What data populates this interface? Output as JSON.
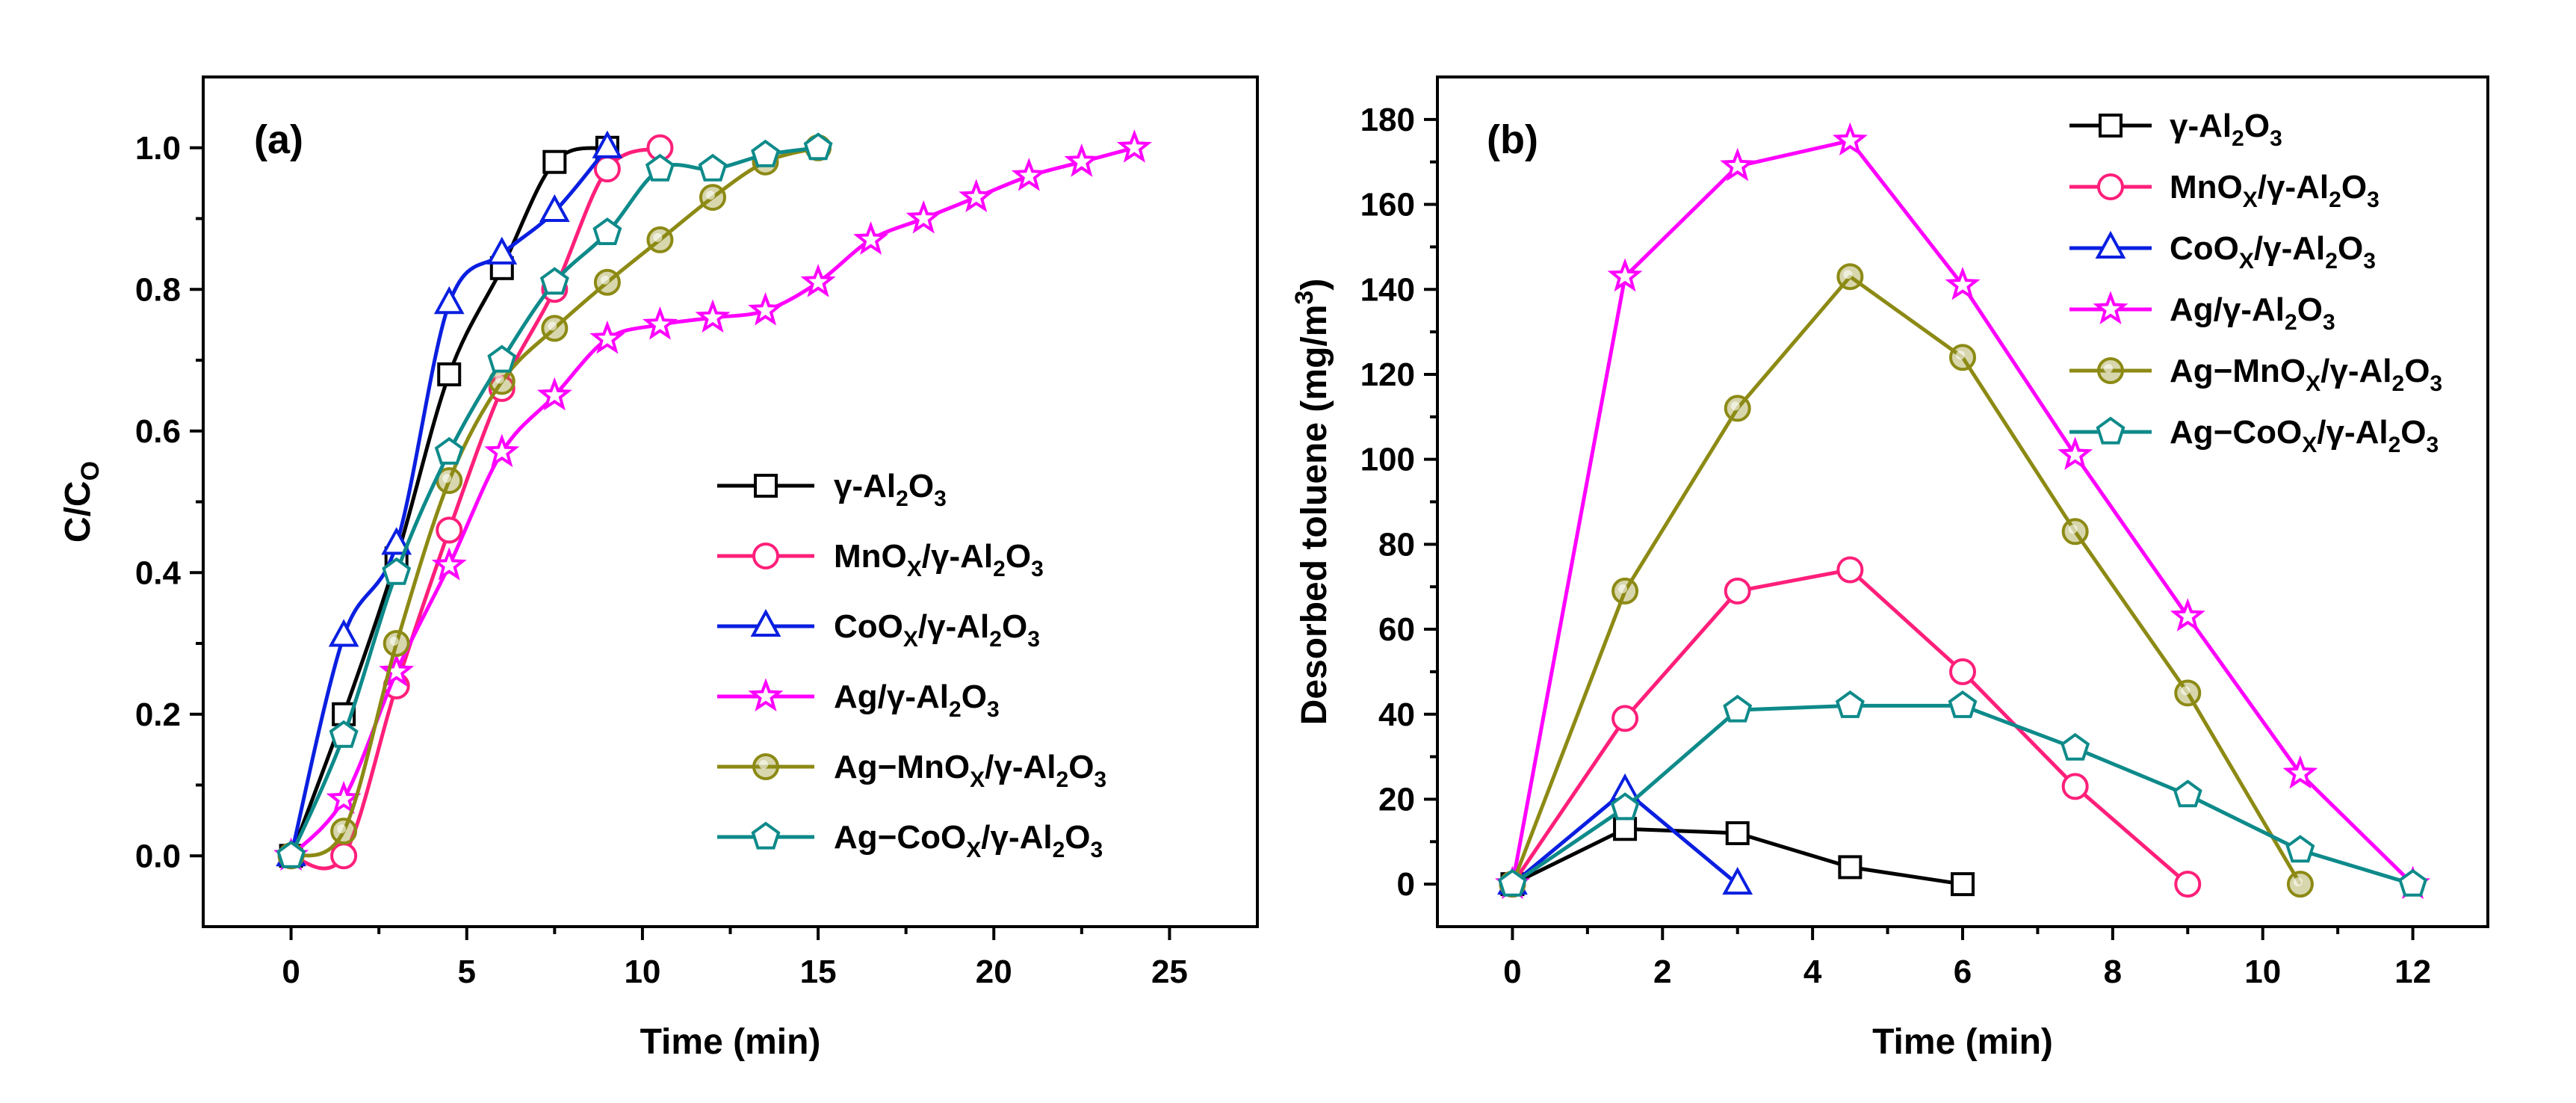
{
  "chart_data": [
    {
      "type": "line",
      "panel_label": "(a)",
      "xlabel": "Time (min)",
      "ylabel": "C/C",
      "ylabel_sub": "O",
      "xlim": [
        -2.5,
        27.5
      ],
      "ylim": [
        -0.1,
        1.1
      ],
      "xticks": [
        0,
        5,
        10,
        15,
        20,
        25
      ],
      "yticks": [
        0.0,
        0.2,
        0.4,
        0.6,
        0.8,
        1.0
      ],
      "ytick_labels": [
        "0.0",
        "0.2",
        "0.4",
        "0.6",
        "0.8",
        "1.0"
      ],
      "legend_position": "lower-right",
      "series": [
        {
          "name": "γ-Al2O3",
          "color": "#000000",
          "marker": "square",
          "x": [
            0,
            1.5,
            3,
            4.5,
            6,
            7.5,
            9
          ],
          "y": [
            0,
            0.2,
            0.42,
            0.68,
            0.83,
            0.98,
            1.0
          ]
        },
        {
          "name": "MnOx/γ-Al2O3",
          "color": "#ff1f7a",
          "marker": "circle",
          "x": [
            0,
            1.5,
            3,
            4.5,
            6,
            7.5,
            9,
            10.5
          ],
          "y": [
            0,
            0,
            0.24,
            0.46,
            0.66,
            0.8,
            0.97,
            1.0
          ]
        },
        {
          "name": "CoOx/γ-Al2O3",
          "color": "#0a1fe0",
          "marker": "triangle",
          "x": [
            0,
            1.5,
            3,
            4.5,
            6,
            7.5,
            9
          ],
          "y": [
            0,
            0.31,
            0.44,
            0.78,
            0.85,
            0.91,
            1.0
          ]
        },
        {
          "name": "Ag/γ-Al2O3",
          "color": "#ff00ff",
          "marker": "star",
          "x": [
            0,
            1.5,
            3,
            4.5,
            6,
            7.5,
            9,
            10.5,
            12,
            13.5,
            15,
            16.5,
            18,
            19.5,
            21,
            22.5,
            24
          ],
          "y": [
            0,
            0.08,
            0.26,
            0.41,
            0.57,
            0.65,
            0.73,
            0.75,
            0.76,
            0.77,
            0.81,
            0.87,
            0.9,
            0.93,
            0.96,
            0.98,
            1.0
          ]
        },
        {
          "name": "Ag−MnOx/γ-Al2O3",
          "color": "#8c8a14",
          "marker": "circle-dot",
          "x": [
            0,
            1.5,
            3,
            4.5,
            6,
            7.5,
            9,
            10.5,
            12,
            13.5,
            15
          ],
          "y": [
            0,
            0.035,
            0.3,
            0.53,
            0.67,
            0.745,
            0.81,
            0.87,
            0.93,
            0.98,
            1.0
          ]
        },
        {
          "name": "Ag−CoOx/γ-Al2O3",
          "color": "#0e8a8a",
          "marker": "pentagon",
          "x": [
            0,
            1.5,
            3,
            4.5,
            6,
            7.5,
            9,
            10.5,
            12,
            13.5,
            15
          ],
          "y": [
            0,
            0.17,
            0.4,
            0.57,
            0.7,
            0.81,
            0.88,
            0.97,
            0.97,
            0.99,
            1.0
          ]
        }
      ]
    },
    {
      "type": "line",
      "panel_label": "(b)",
      "xlabel": "Time (min)",
      "ylabel": "Desorbed toluene (mg/m",
      "ylabel_sup": "3",
      "ylabel_end": ")",
      "xlim": [
        -1,
        13
      ],
      "ylim": [
        -10,
        190
      ],
      "xticks": [
        0,
        2,
        4,
        6,
        8,
        10,
        12
      ],
      "yticks": [
        0,
        20,
        40,
        60,
        80,
        100,
        120,
        140,
        160,
        180
      ],
      "legend_position": "top-right",
      "series": [
        {
          "name": "γ-Al2O3",
          "color": "#000000",
          "marker": "square",
          "x": [
            0,
            1.5,
            3,
            4.5,
            6
          ],
          "y": [
            0,
            13,
            12,
            4,
            0
          ]
        },
        {
          "name": "MnOx/γ-Al2O3",
          "color": "#ff1f7a",
          "marker": "circle",
          "x": [
            0,
            1.5,
            3,
            4.5,
            6,
            7.5,
            9
          ],
          "y": [
            0,
            39,
            69,
            74,
            50,
            23,
            0
          ]
        },
        {
          "name": "CoOx/γ-Al2O3",
          "color": "#0a1fe0",
          "marker": "triangle",
          "x": [
            0,
            1.5,
            3
          ],
          "y": [
            0,
            22,
            0
          ]
        },
        {
          "name": "Ag/γ-Al2O3",
          "color": "#ff00ff",
          "marker": "star",
          "x": [
            0,
            1.5,
            3,
            4.5,
            6,
            7.5,
            9,
            10.5,
            12
          ],
          "y": [
            0,
            143,
            169,
            175,
            141,
            101,
            63,
            26,
            0
          ]
        },
        {
          "name": "Ag−MnOx/γ-Al2O3",
          "color": "#8c8a14",
          "marker": "circle-dot",
          "x": [
            0,
            1.5,
            3,
            4.5,
            6,
            7.5,
            9,
            10.5
          ],
          "y": [
            0,
            69,
            112,
            143,
            124,
            83,
            45,
            0
          ]
        },
        {
          "name": "Ag−CoOx/γ-Al2O3",
          "color": "#0e8a8a",
          "marker": "pentagon",
          "x": [
            0,
            1.5,
            3,
            4.5,
            6,
            7.5,
            9,
            10.5,
            12
          ],
          "y": [
            0,
            18,
            41,
            42,
            42,
            32,
            21,
            8,
            0
          ]
        }
      ]
    }
  ]
}
